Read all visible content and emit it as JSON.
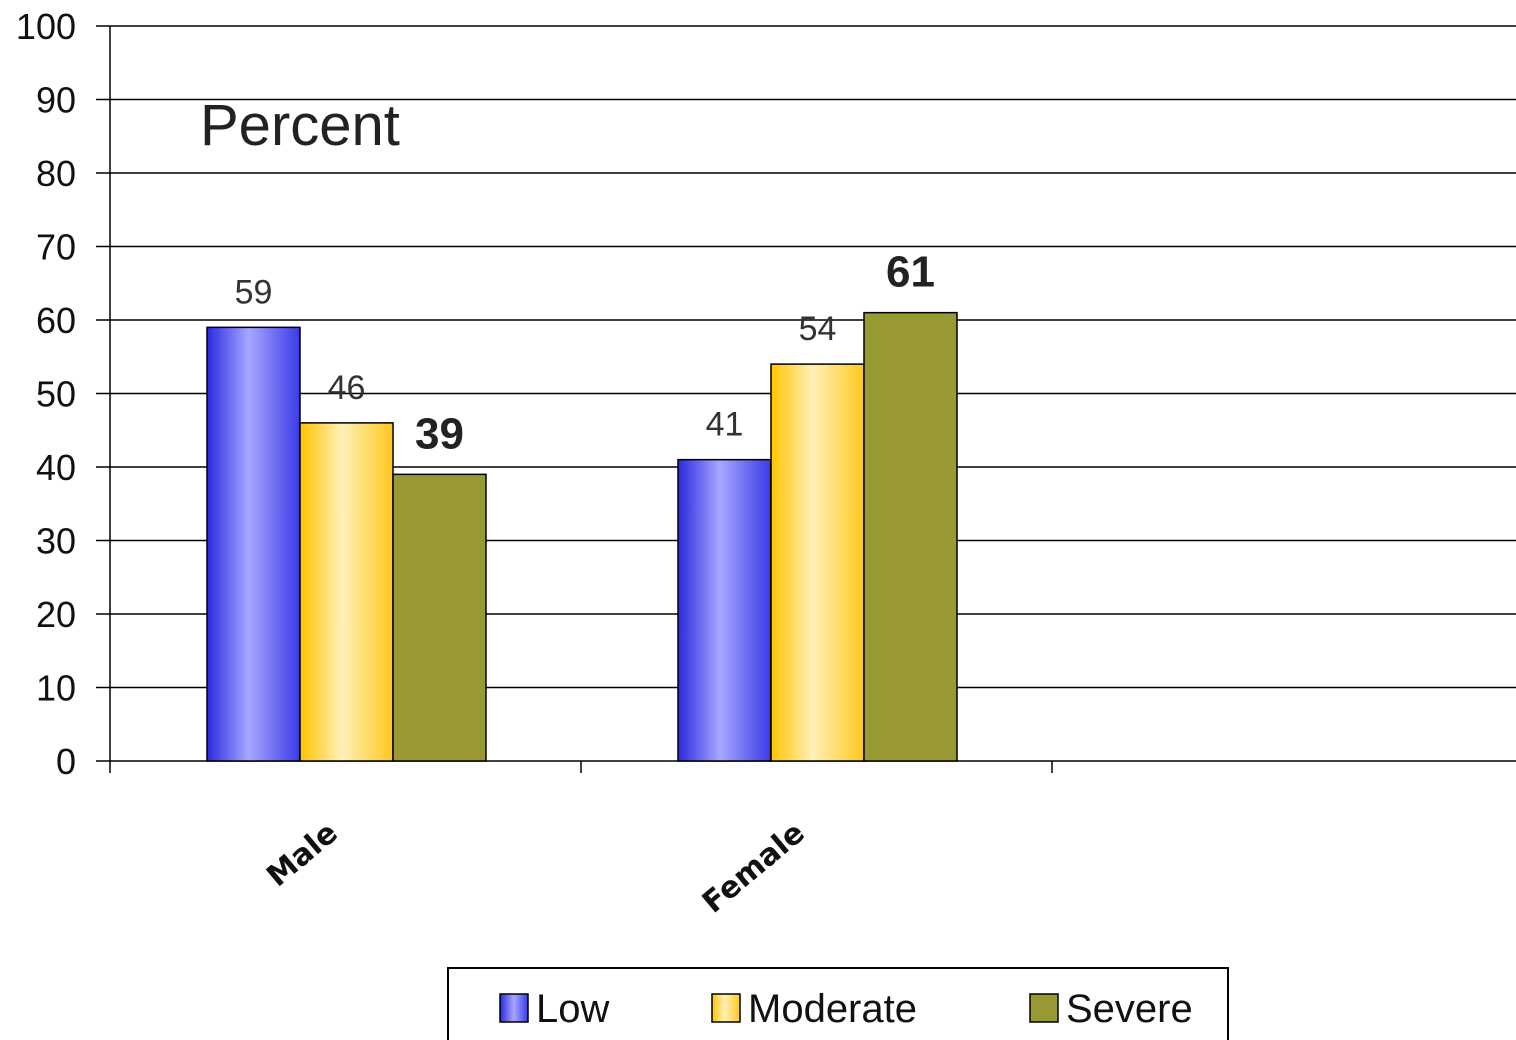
{
  "chart_data": {
    "type": "bar",
    "title": "Percent",
    "categories": [
      "Male",
      "Female"
    ],
    "series": [
      {
        "name": "Low",
        "values": [
          59,
          41
        ],
        "color": "#7b7bf5"
      },
      {
        "name": "Moderate",
        "values": [
          46,
          54
        ],
        "color": "#ffdc5a"
      },
      {
        "name": "Severe",
        "values": [
          39,
          61
        ],
        "color": "#999933"
      }
    ],
    "data_labels": [
      [
        "59",
        "41"
      ],
      [
        "46",
        "54"
      ],
      [
        "39",
        "61"
      ]
    ],
    "bold_labels_series": "Severe",
    "ylim": [
      0,
      100
    ],
    "yticks": [
      "0",
      "10",
      "20",
      "30",
      "40",
      "50",
      "60",
      "70",
      "80",
      "90",
      "100"
    ],
    "grid": true,
    "legend_position": "bottom",
    "xlabel": "",
    "ylabel": ""
  }
}
